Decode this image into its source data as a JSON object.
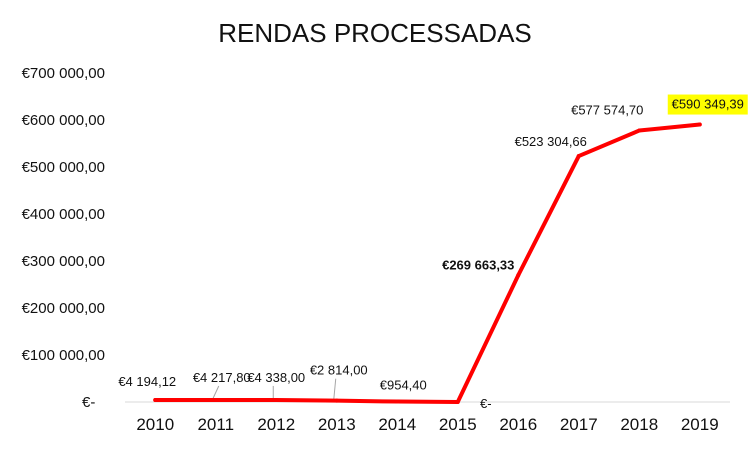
{
  "chart_data": {
    "type": "line",
    "title": "RENDAS  PROCESSADAS",
    "xlabel": "",
    "ylabel": "",
    "categories": [
      "2010",
      "2011",
      "2012",
      "2013",
      "2014",
      "2015",
      "2016",
      "2017",
      "2018",
      "2019"
    ],
    "values": [
      4194.12,
      4217.8,
      4338.0,
      2814.0,
      954.4,
      0,
      269663.33,
      523304.66,
      577574.7,
      590349.39
    ],
    "data_labels": [
      "€4 194,12",
      "€4 217,80",
      "€4 338,00",
      "€2 814,00",
      "€954,40",
      "€-",
      "€269 663,33",
      "€523 304,66",
      "€577 574,70",
      "€590 349,39"
    ],
    "ylim": [
      0,
      700000
    ],
    "yticks": [
      0,
      100000,
      200000,
      300000,
      400000,
      500000,
      600000,
      700000
    ],
    "ytick_labels": [
      "€-",
      "€100 000,00",
      "€200 000,00",
      "€300 000,00",
      "€400 000,00",
      "€500 000,00",
      "€600 000,00",
      "€700 000,00"
    ],
    "grid": false,
    "legend": "none",
    "line_color": "#ff0000",
    "highlight_color": "#ffff00"
  }
}
